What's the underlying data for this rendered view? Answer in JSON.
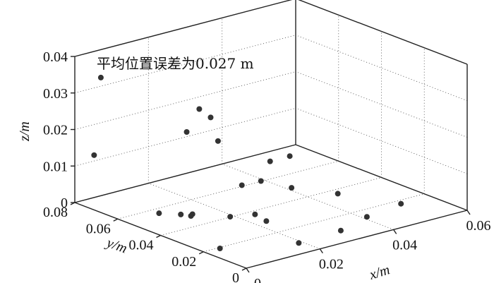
{
  "chart_data": {
    "type": "scatter3d",
    "title": "",
    "annotation": "平均位置误差为0.027 m",
    "xlabel": "x/m",
    "ylabel": "y/m",
    "zlabel": "z/m",
    "xlim": [
      0,
      0.06
    ],
    "ylim": [
      0,
      0.08
    ],
    "zlim": [
      0,
      0.04
    ],
    "xticks": [
      "0",
      "0.02",
      "0.04",
      "0.06"
    ],
    "yticks": [
      "0",
      "0.02",
      "0.04",
      "0.06",
      "0.08"
    ],
    "zticks": [
      "0",
      "0.01",
      "0.02",
      "0.03",
      "0.04"
    ],
    "grid": true,
    "marker_color": "#333333",
    "points": [
      {
        "x": 0.003,
        "y": 0.073,
        "z": 0.035
      },
      {
        "x": 0.0,
        "y": 0.071,
        "z": 0.015
      },
      {
        "x": 0.017,
        "y": 0.057,
        "z": 0.02
      },
      {
        "x": 0.021,
        "y": 0.058,
        "z": 0.025
      },
      {
        "x": 0.027,
        "y": 0.063,
        "z": 0.02
      },
      {
        "x": 0.029,
        "y": 0.063,
        "z": 0.013
      },
      {
        "x": 0.035,
        "y": 0.049,
        "z": 0.009
      },
      {
        "x": 0.045,
        "y": 0.057,
        "z": 0.006
      },
      {
        "x": 0.025,
        "y": 0.045,
        "z": 0.006
      },
      {
        "x": 0.035,
        "y": 0.039,
        "z": 0.004
      },
      {
        "x": 0.04,
        "y": 0.026,
        "z": 0.004
      },
      {
        "x": 0.049,
        "y": 0.012,
        "z": 0.002
      },
      {
        "x": 0.038,
        "y": 0.009,
        "z": 0.002
      },
      {
        "x": 0.028,
        "y": 0.004,
        "z": 0.002
      },
      {
        "x": 0.016,
        "y": 0.003,
        "z": 0.002
      },
      {
        "x": 0.001,
        "y": 0.014,
        "z": 0.002
      },
      {
        "x": 0.016,
        "y": 0.035,
        "z": 0.002
      },
      {
        "x": 0.021,
        "y": 0.032,
        "z": 0.002
      },
      {
        "x": 0.02,
        "y": 0.025,
        "z": 0.002
      },
      {
        "x": 0.01,
        "y": 0.043,
        "z": 0.002
      },
      {
        "x": 0.006,
        "y": 0.051,
        "z": 0.002
      },
      {
        "x": 0.009,
        "y": 0.046,
        "z": 0.002
      },
      {
        "x": 0.011,
        "y": 0.044,
        "z": 0.002
      },
      {
        "x": 0.036,
        "y": 0.055,
        "z": 0.002
      }
    ]
  }
}
